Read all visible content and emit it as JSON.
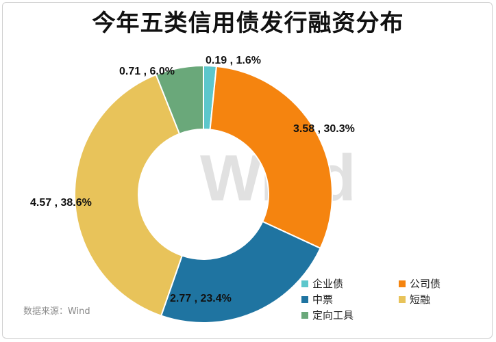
{
  "title": "今年五类信用债发行融资分布",
  "watermark": "Wind",
  "source": "数据来源：Wind",
  "chart_data": {
    "type": "pie",
    "donut": true,
    "series": [
      {
        "name": "企业债",
        "value": 0.19,
        "percent": 1.6,
        "color": "#5cc7cc",
        "label": "0.19 , 1.6%"
      },
      {
        "name": "公司债",
        "value": 3.58,
        "percent": 30.3,
        "color": "#f5840f",
        "label": "3.58 , 30.3%"
      },
      {
        "name": "中票",
        "value": 2.77,
        "percent": 23.4,
        "color": "#1f74a1",
        "label": "2.77 , 23.4%"
      },
      {
        "name": "短融",
        "value": 4.57,
        "percent": 38.6,
        "color": "#e8c35a",
        "label": "4.57 , 38.6%"
      },
      {
        "name": "定向工具",
        "value": 0.71,
        "percent": 6.0,
        "color": "#6aa87a",
        "label": "0.71 , 6.0%"
      }
    ],
    "legend_position": "bottom-right"
  }
}
